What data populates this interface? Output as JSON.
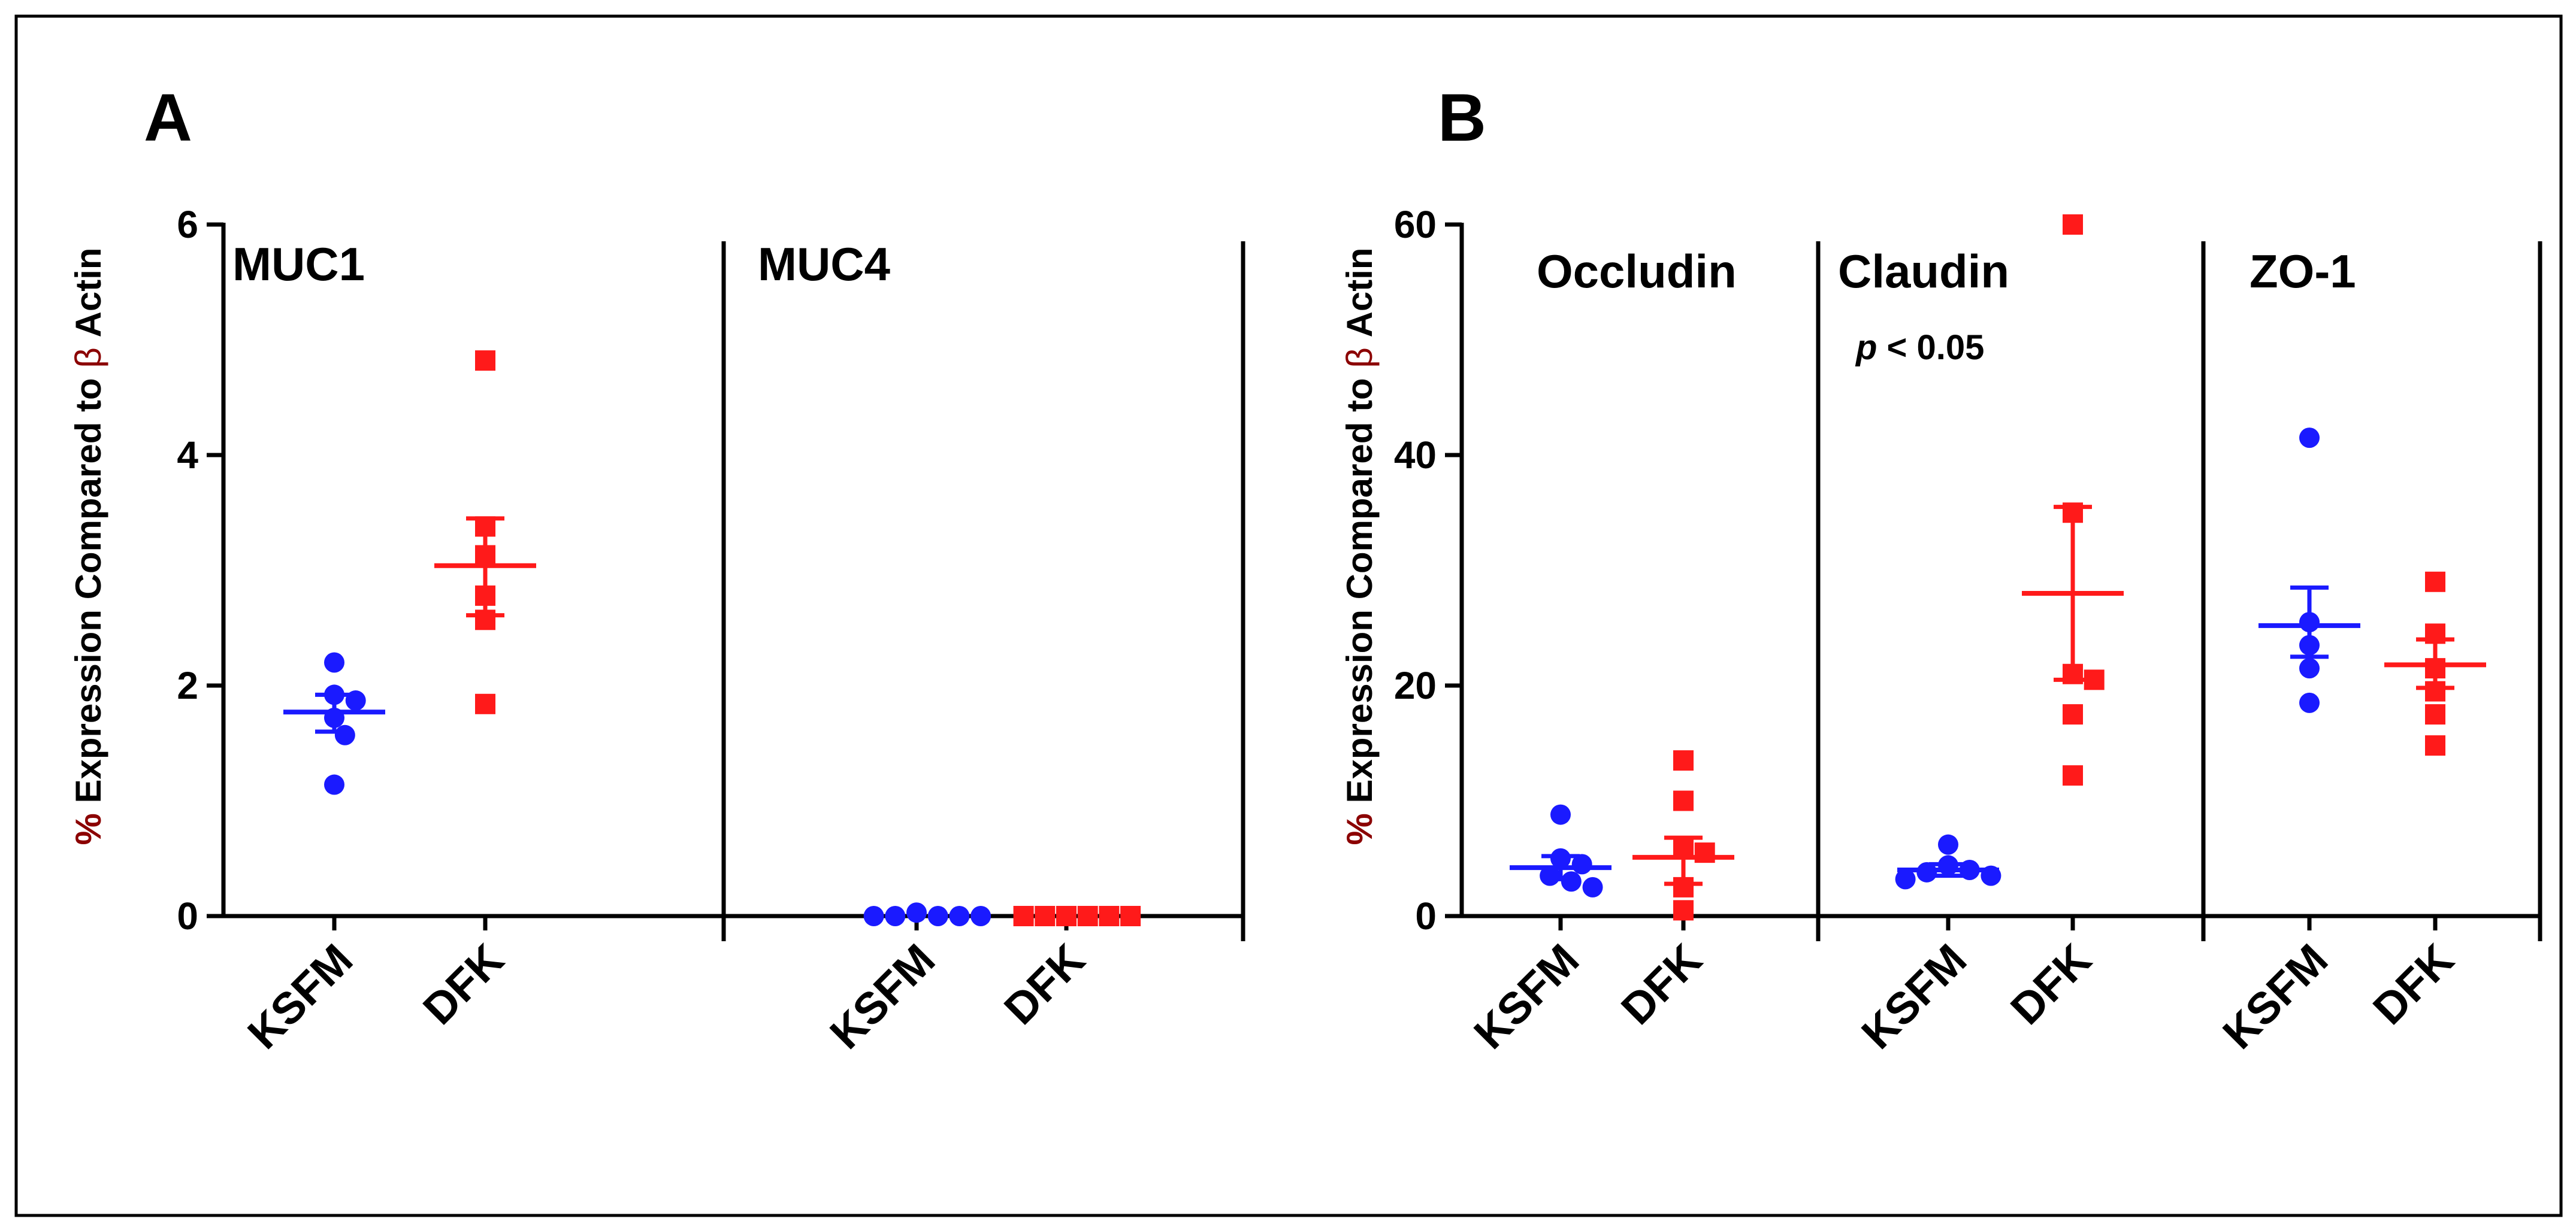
{
  "figure": {
    "colors": {
      "KSFM": "#1a1aff",
      "DFK": "#ff1a1a",
      "axis": "#000000"
    },
    "ylabel": {
      "prefix": "% Expression Compared to",
      "beta": "β",
      "suffix": "Actin"
    }
  },
  "chart_data": [
    {
      "id": "A",
      "type": "scatter",
      "panel_label": "A",
      "ylabel": "% Expression Compared to β Actin",
      "ylim": [
        0,
        6
      ],
      "ticks": [
        0,
        2,
        4,
        6
      ],
      "tick_labels": [
        "0",
        "2",
        "4",
        "6"
      ],
      "groups": [
        {
          "title": "MUC1",
          "note": "",
          "series": [
            {
              "name": "KSFM",
              "marker": "circle",
              "points": [
                1.14,
                1.57,
                1.72,
                1.87,
                1.92,
                2.2
              ],
              "mean": 1.77,
              "sem": [
                1.6,
                1.92
              ]
            },
            {
              "name": "DFK",
              "marker": "square",
              "points": [
                1.84,
                2.57,
                2.78,
                3.13,
                3.38,
                4.82
              ],
              "mean": 3.04,
              "sem": [
                2.61,
                3.45
              ]
            }
          ]
        },
        {
          "title": "MUC4",
          "note": "",
          "series": [
            {
              "name": "KSFM",
              "marker": "circle",
              "points": [
                0.0,
                0.0,
                0.0,
                0.0,
                0.0,
                0.03
              ],
              "mean": null,
              "sem": null
            },
            {
              "name": "DFK",
              "marker": "square",
              "points": [
                0.0,
                0.0,
                0.0,
                0.0,
                0.0,
                0.0
              ],
              "mean": null,
              "sem": null
            }
          ]
        }
      ]
    },
    {
      "id": "B",
      "type": "scatter",
      "panel_label": "B",
      "ylabel": "% Expression Compared to β Actin",
      "ylim": [
        0,
        60
      ],
      "ticks": [
        0,
        20,
        40,
        60
      ],
      "tick_labels": [
        "0",
        "20",
        "40",
        "60"
      ],
      "groups": [
        {
          "title": "Occludin",
          "note": "",
          "series": [
            {
              "name": "KSFM",
              "marker": "circle",
              "points": [
                2.5,
                3.0,
                3.5,
                4.5,
                5.0,
                8.8
              ],
              "mean": 4.2,
              "sem": [
                3.2,
                5.2
              ]
            },
            {
              "name": "DFK",
              "marker": "square",
              "points": [
                0.5,
                2.5,
                5.5,
                6.0,
                10.0,
                13.5
              ],
              "mean": 5.1,
              "sem": [
                2.8,
                6.8
              ]
            }
          ]
        },
        {
          "title": "Claudin",
          "note": "p < 0.05",
          "series": [
            {
              "name": "KSFM",
              "marker": "circle",
              "points": [
                3.2,
                3.5,
                3.8,
                4.0,
                4.4,
                6.2
              ],
              "mean": 4.0,
              "sem": [
                3.5,
                4.5
              ]
            },
            {
              "name": "DFK",
              "marker": "square",
              "points": [
                12.2,
                17.5,
                20.5,
                21.0,
                35.0,
                60.0
              ],
              "mean": 28.0,
              "sem": [
                20.5,
                35.5
              ]
            }
          ]
        },
        {
          "title": "ZO-1",
          "note": "",
          "series": [
            {
              "name": "KSFM",
              "marker": "circle",
              "points": [
                18.5,
                21.5,
                23.5,
                25.5,
                41.5
              ],
              "mean": 25.2,
              "sem": [
                22.5,
                28.5
              ]
            },
            {
              "name": "DFK",
              "marker": "square",
              "points": [
                14.8,
                17.5,
                19.5,
                21.5,
                24.5,
                29.0
              ],
              "mean": 21.8,
              "sem": [
                19.8,
                24.0
              ]
            }
          ]
        }
      ]
    }
  ]
}
